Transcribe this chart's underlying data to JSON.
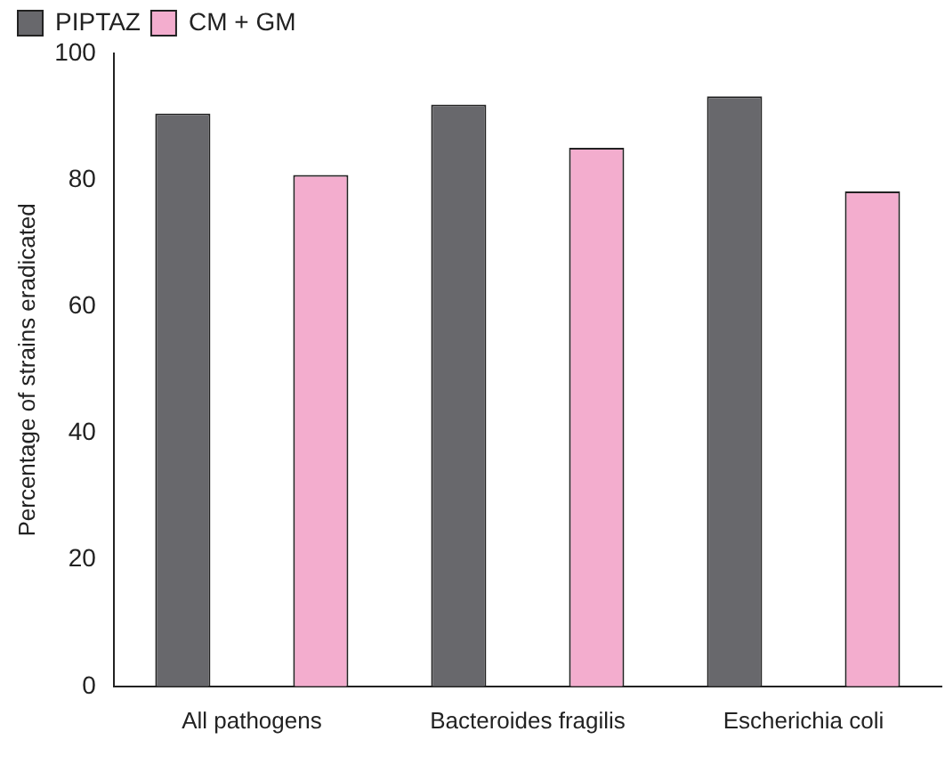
{
  "chart_data": {
    "type": "bar",
    "ylabel": "Percentage of strains eradicated",
    "categories": [
      "All pathogens",
      "Bacteroides fragilis",
      "Escherichia coli"
    ],
    "series": [
      {
        "name": "PIPTAZ",
        "color": "#68686c",
        "values": [
          90.5,
          91.9,
          93.2
        ]
      },
      {
        "name": "CM + GM",
        "color": "#f3adce",
        "values": [
          80.8,
          85.1,
          78.2
        ]
      }
    ],
    "ylim": [
      0,
      100
    ],
    "yticks": [
      0,
      20,
      40,
      60,
      80,
      100
    ],
    "grid": false,
    "legend": "top left"
  }
}
